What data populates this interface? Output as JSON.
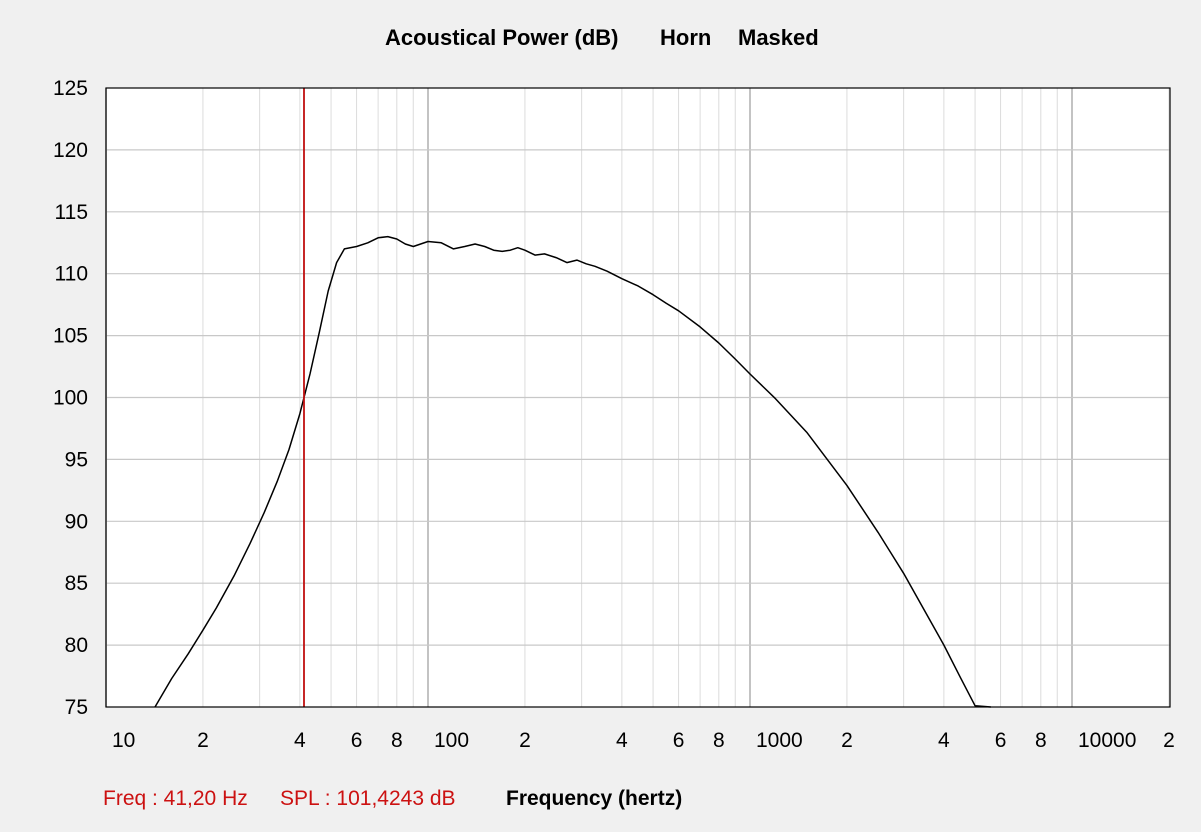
{
  "chart_data": {
    "type": "line",
    "title_parts": [
      "Acoustical Power (dB)",
      "Horn",
      "Masked"
    ],
    "xlabel": "Frequency (hertz)",
    "ylabel": "",
    "xscale": "log",
    "xlim": [
      10,
      20000
    ],
    "ylim": [
      75,
      125
    ],
    "grid": true,
    "x_tick_labels": [
      {
        "value": 10,
        "label": "10"
      },
      {
        "value": 20,
        "label": "2"
      },
      {
        "value": 40,
        "label": "4"
      },
      {
        "value": 60,
        "label": "6"
      },
      {
        "value": 80,
        "label": "8"
      },
      {
        "value": 100,
        "label": "100"
      },
      {
        "value": 200,
        "label": "2"
      },
      {
        "value": 400,
        "label": "4"
      },
      {
        "value": 600,
        "label": "6"
      },
      {
        "value": 800,
        "label": "8"
      },
      {
        "value": 1000,
        "label": "1000"
      },
      {
        "value": 2000,
        "label": "2"
      },
      {
        "value": 4000,
        "label": "4"
      },
      {
        "value": 6000,
        "label": "6"
      },
      {
        "value": 8000,
        "label": "8"
      },
      {
        "value": 10000,
        "label": "10000"
      },
      {
        "value": 20000,
        "label": "2"
      }
    ],
    "y_ticks": [
      75,
      80,
      85,
      90,
      95,
      100,
      105,
      110,
      115,
      120,
      125
    ],
    "cursor": {
      "freq": 41.2,
      "freq_label": "Freq : 41,20 Hz",
      "spl_label": "SPL : 101,4243 dB",
      "color": "#c01010"
    },
    "series": [
      {
        "color": "#000000",
        "x": [
          14.2,
          16,
          18,
          20,
          22,
          25,
          28,
          31,
          34,
          37,
          40,
          43,
          46,
          49,
          52,
          55,
          60,
          65,
          70,
          75,
          80,
          85,
          90,
          100,
          110,
          120,
          130,
          140,
          150,
          160,
          170,
          180,
          190,
          200,
          215,
          230,
          250,
          270,
          290,
          310,
          330,
          360,
          400,
          450,
          500,
          550,
          600,
          700,
          800,
          900,
          1000,
          1200,
          1500,
          2000,
          2500,
          3000,
          3500,
          4000,
          4500,
          5000,
          5600
        ],
        "y": [
          75,
          77.3,
          79.3,
          81.2,
          83,
          85.6,
          88.2,
          90.7,
          93.2,
          95.8,
          98.7,
          101.9,
          105.3,
          108.6,
          110.9,
          112,
          112.2,
          112.5,
          112.9,
          113,
          112.8,
          112.4,
          112.2,
          112.6,
          112.5,
          112,
          112.2,
          112.4,
          112.2,
          111.9,
          111.8,
          111.9,
          112.1,
          111.9,
          111.5,
          111.6,
          111.3,
          110.9,
          111.1,
          110.8,
          110.6,
          110.2,
          109.6,
          109,
          108.3,
          107.6,
          107,
          105.7,
          104.4,
          103.1,
          101.9,
          99.9,
          97.2,
          92.9,
          89.1,
          85.8,
          82.7,
          80,
          77.4,
          75.1,
          75
        ]
      }
    ]
  }
}
